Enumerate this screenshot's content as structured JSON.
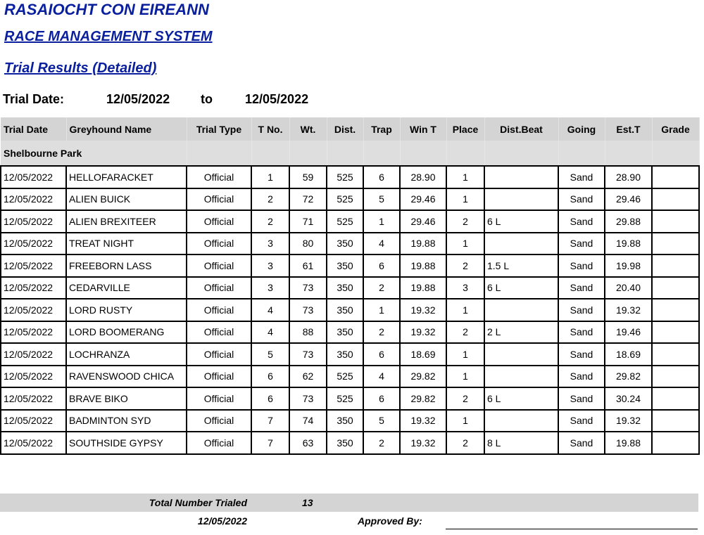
{
  "header": {
    "org": "RASAIOCHT CON EIREANN",
    "system": "RACE MANAGEMENT SYSTEM",
    "report": "Trial Results (Detailed)"
  },
  "date_range": {
    "label": "Trial Date:",
    "from": "12/05/2022",
    "to_label": "to",
    "to": "12/05/2022"
  },
  "table": {
    "columns": [
      "Trial Date",
      "Greyhound Name",
      "Trial Type",
      "T No.",
      "Wt.",
      "Dist.",
      "Trap",
      "Win T",
      "Place",
      "Dist.Beat",
      "Going",
      "Est.T",
      "Grade"
    ],
    "section": "Shelbourne Park",
    "rows": [
      [
        "12/05/2022",
        "HELLOFARACKET",
        "Official",
        "1",
        "59",
        "525",
        "6",
        "28.90",
        "1",
        "",
        "Sand",
        "28.90",
        ""
      ],
      [
        "12/05/2022",
        "ALIEN BUICK",
        "Official",
        "2",
        "72",
        "525",
        "5",
        "29.46",
        "1",
        "",
        "Sand",
        "29.46",
        ""
      ],
      [
        "12/05/2022",
        "ALIEN BREXITEER",
        "Official",
        "2",
        "71",
        "525",
        "1",
        "29.46",
        "2",
        "6 L",
        "Sand",
        "29.88",
        ""
      ],
      [
        "12/05/2022",
        "TREAT NIGHT",
        "Official",
        "3",
        "80",
        "350",
        "4",
        "19.88",
        "1",
        "",
        "Sand",
        "19.88",
        ""
      ],
      [
        "12/05/2022",
        "FREEBORN LASS",
        "Official",
        "3",
        "61",
        "350",
        "6",
        "19.88",
        "2",
        "1.5 L",
        "Sand",
        "19.98",
        ""
      ],
      [
        "12/05/2022",
        "CEDARVILLE",
        "Official",
        "3",
        "73",
        "350",
        "2",
        "19.88",
        "3",
        "6 L",
        "Sand",
        "20.40",
        ""
      ],
      [
        "12/05/2022",
        "LORD RUSTY",
        "Official",
        "4",
        "73",
        "350",
        "1",
        "19.32",
        "1",
        "",
        "Sand",
        "19.32",
        ""
      ],
      [
        "12/05/2022",
        "LORD BOOMERANG",
        "Official",
        "4",
        "88",
        "350",
        "2",
        "19.32",
        "2",
        "2 L",
        "Sand",
        "19.46",
        ""
      ],
      [
        "12/05/2022",
        "LOCHRANZA",
        "Official",
        "5",
        "73",
        "350",
        "6",
        "18.69",
        "1",
        "",
        "Sand",
        "18.69",
        ""
      ],
      [
        "12/05/2022",
        "RAVENSWOOD CHICA",
        "Official",
        "6",
        "62",
        "525",
        "4",
        "29.82",
        "1",
        "",
        "Sand",
        "29.82",
        ""
      ],
      [
        "12/05/2022",
        "BRAVE BIKO",
        "Official",
        "6",
        "73",
        "525",
        "6",
        "29.82",
        "2",
        "6 L",
        "Sand",
        "30.24",
        ""
      ],
      [
        "12/05/2022",
        "BADMINTON SYD",
        "Official",
        "7",
        "74",
        "350",
        "5",
        "19.32",
        "1",
        "",
        "Sand",
        "19.32",
        ""
      ],
      [
        "12/05/2022",
        "SOUTHSIDE GYPSY",
        "Official",
        "7",
        "63",
        "350",
        "2",
        "19.32",
        "2",
        "8 L",
        "Sand",
        "19.88",
        ""
      ]
    ]
  },
  "footer": {
    "total_label": "Total Number Trialed",
    "total": "13",
    "date": "12/05/2022",
    "approved_label": "Approved By:"
  }
}
